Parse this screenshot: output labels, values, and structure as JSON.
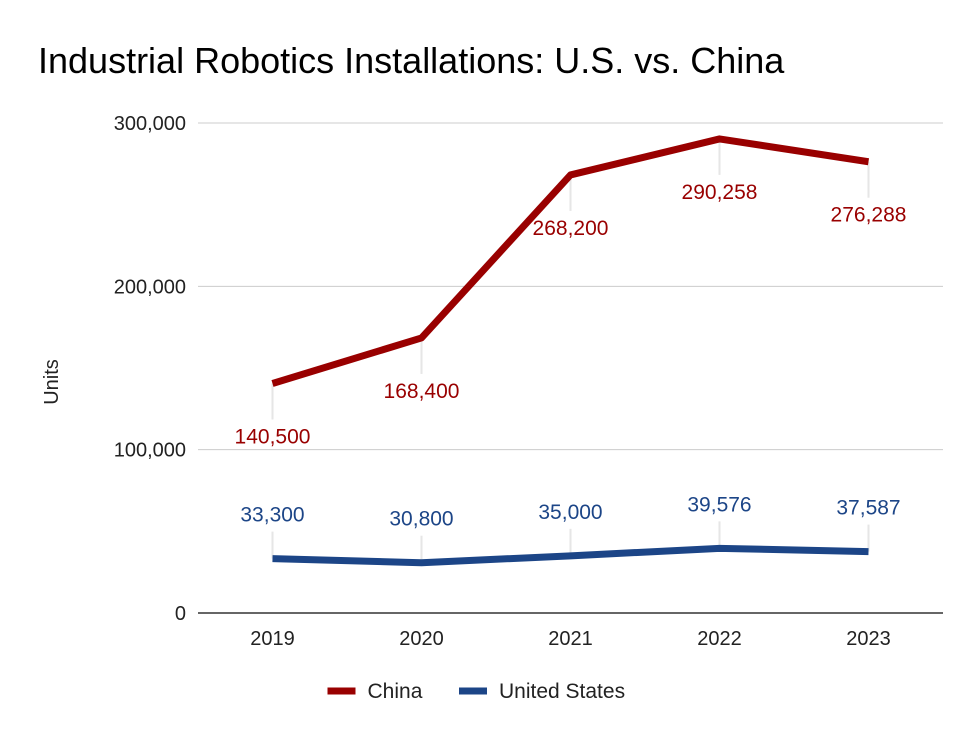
{
  "chart_data": {
    "type": "line",
    "title": "Industrial Robotics Installations: U.S. vs. China",
    "xlabel": "",
    "ylabel": "Units",
    "categories": [
      "2019",
      "2020",
      "2021",
      "2022",
      "2023"
    ],
    "ylim": [
      0,
      300000
    ],
    "yticks": [
      0,
      100000,
      200000,
      300000
    ],
    "ytick_labels": [
      "0",
      "100,000",
      "200,000",
      "300,000"
    ],
    "grid": true,
    "legend_position": "bottom",
    "series": [
      {
        "name": "China",
        "color": "#990000",
        "values": [
          140500,
          168400,
          268200,
          290258,
          276288
        ],
        "labels": [
          "140,500",
          "168,400",
          "268,200",
          "290,258",
          "276,288"
        ]
      },
      {
        "name": "United States",
        "color": "#1c4587",
        "values": [
          33300,
          30800,
          35000,
          39576,
          37587
        ],
        "labels": [
          "33,300",
          "30,800",
          "35,000",
          "39,576",
          "37,587"
        ]
      }
    ]
  }
}
